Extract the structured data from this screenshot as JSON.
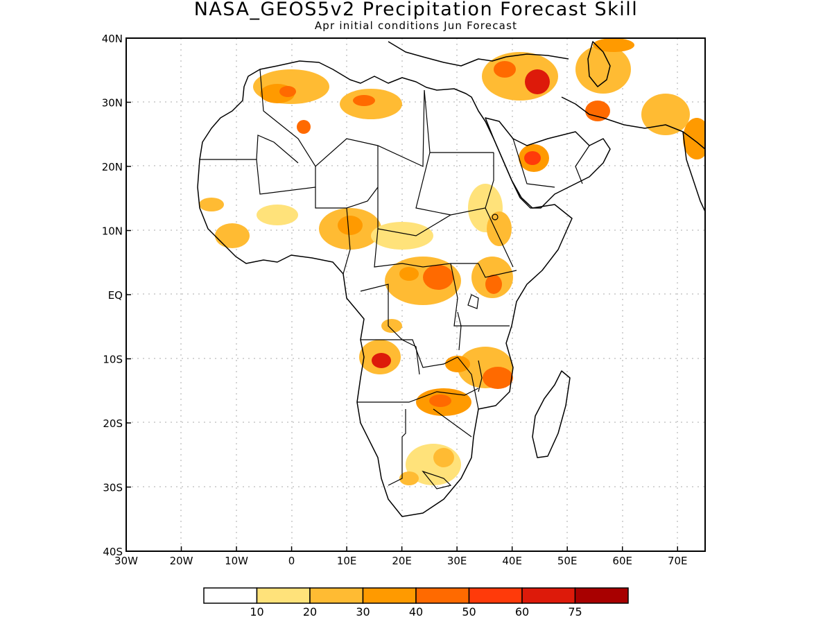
{
  "title": "NASA_GEOS5v2 Precipitation Forecast Skill",
  "subtitle": "Apr initial conditions  Jun Forecast",
  "map": {
    "lon_range": [
      -30,
      75
    ],
    "lat_range": [
      -40,
      40
    ],
    "lon_ticks": [
      "30W",
      "20W",
      "10W",
      "0",
      "10E",
      "20E",
      "30E",
      "40E",
      "50E",
      "60E",
      "70E"
    ],
    "lat_ticks": [
      "40S",
      "30S",
      "20S",
      "10S",
      "EQ",
      "10N",
      "20N",
      "30N",
      "40N"
    ],
    "grid": true
  },
  "colorbar": {
    "colors": [
      "#ffffff",
      "#ffe27a",
      "#ffbb33",
      "#ff9a00",
      "#ff6a00",
      "#ff3a0a",
      "#dd1a0a",
      "#a80000"
    ],
    "labels": [
      "10",
      "20",
      "30",
      "40",
      "50",
      "60",
      "75"
    ]
  }
}
